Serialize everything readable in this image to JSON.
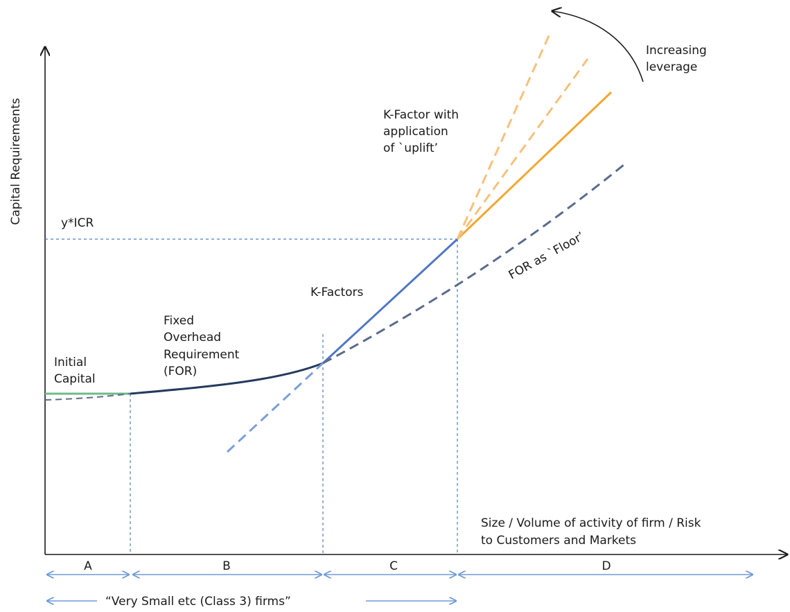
{
  "axes": {
    "y_label": "Capital Requirements",
    "x_label_line1": "Size / Volume of activity of firm / Risk",
    "x_label_line2": "to Customers and Markets",
    "y_marker": "y*ICR"
  },
  "labels": {
    "initial_capital": [
      "Initial",
      "Capital"
    ],
    "for": [
      "Fixed",
      "Overhead",
      "Requirement",
      "(FOR)"
    ],
    "k_factors": "K-Factors",
    "uplift": [
      "K-Factor with",
      "application",
      "of `uplift’"
    ],
    "leverage": [
      "Increasing",
      "leverage"
    ],
    "floor": "FOR as `Floor’"
  },
  "segments": [
    "A",
    "B",
    "C",
    "D"
  ],
  "class3_note": "“Very Small etc (Class 3) firms”",
  "colors": {
    "initial_capital": "#6dbb85",
    "for_curve": "#243a5e",
    "k_factor": "#4f77c4",
    "k_factor_dashed": "#7a9fd9",
    "floor_dashed": "#5a6b8c",
    "uplift": "#f3a731",
    "uplift_dashed": "#f6c17a",
    "guide": "#4a7ebb",
    "segment_arrow": "#6f9bd8"
  }
}
